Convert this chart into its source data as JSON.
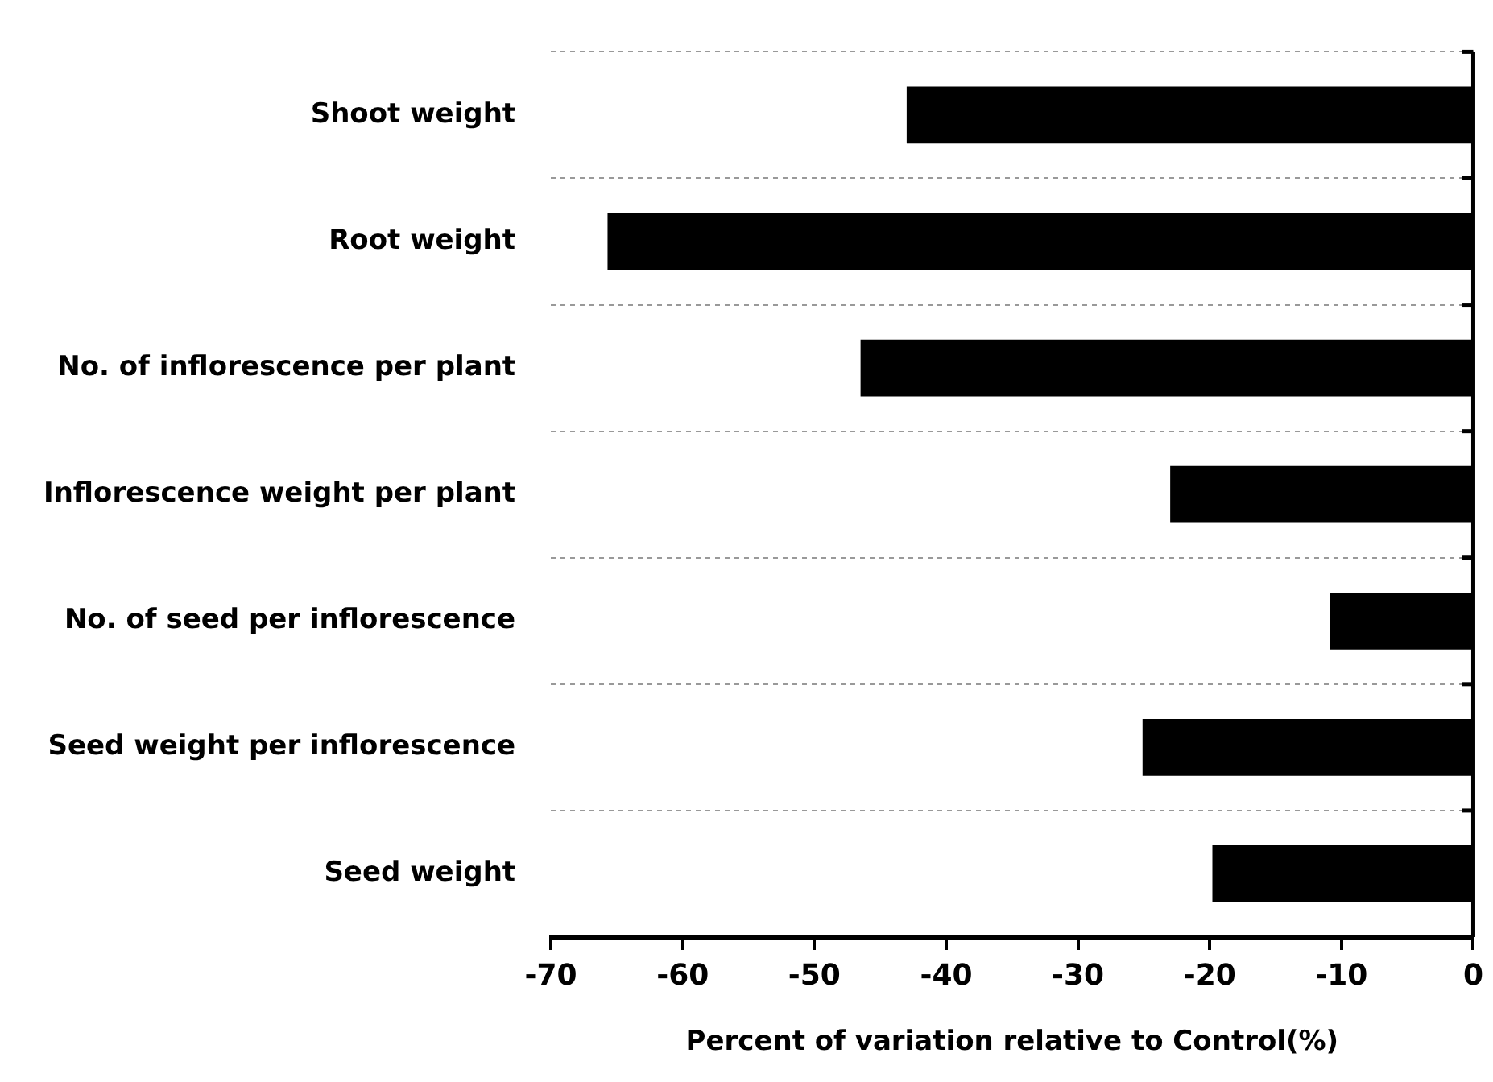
{
  "chart_data": {
    "type": "bar",
    "orientation": "horizontal",
    "xlabel": "Percent of variation relative to Control(%)",
    "categories": [
      "Shoot weight",
      "Root weight",
      "No. of inflorescence per plant",
      "Inflorescence weight per plant",
      "No. of seed per inflorescence",
      "Seed weight per inflorescence",
      "Seed weight"
    ],
    "values": [
      -43.0,
      -65.7,
      -46.5,
      -23.0,
      -10.9,
      -25.1,
      -19.8
    ],
    "color": "#000000",
    "xlim": [
      -70,
      0
    ],
    "xticks": [
      -70,
      -60,
      -50,
      -40,
      -30,
      -20,
      -10,
      0
    ],
    "grid": "y",
    "legend": false
  }
}
